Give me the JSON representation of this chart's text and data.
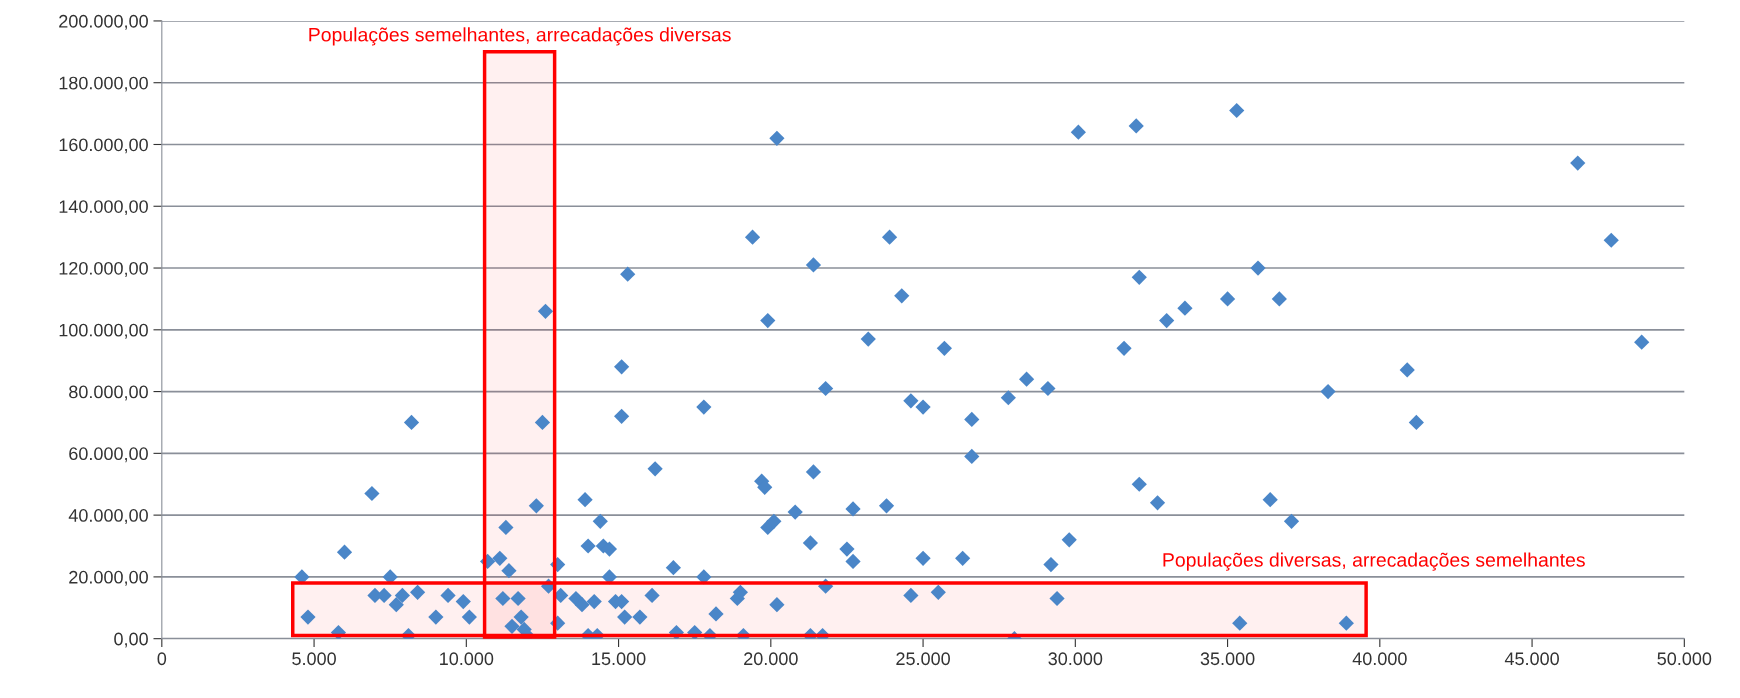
{
  "chart_data": {
    "type": "scatter",
    "marker": "diamond",
    "grid": "y",
    "color": "#4a86c8",
    "x": [
      4600,
      4800,
      5800,
      6000,
      6900,
      7000,
      7300,
      7500,
      7700,
      7900,
      8100,
      8200,
      8400,
      9000,
      9400,
      9900,
      10100,
      10700,
      11100,
      11200,
      11300,
      11400,
      11500,
      11700,
      11800,
      11900,
      12000,
      12300,
      12500,
      12600,
      12700,
      13000,
      13000,
      13100,
      13600,
      13800,
      13900,
      14000,
      14000,
      14200,
      14300,
      14400,
      14500,
      14700,
      14700,
      14900,
      15100,
      15100,
      15100,
      15200,
      15300,
      15700,
      16100,
      16200,
      16800,
      16900,
      17500,
      17800,
      17800,
      18000,
      18200,
      18900,
      19000,
      19100,
      19400,
      19700,
      19800,
      19900,
      19900,
      20100,
      20200,
      20200,
      20800,
      21300,
      21300,
      21400,
      21400,
      21800,
      21800,
      21700,
      22500,
      22700,
      22700,
      23200,
      23800,
      23900,
      24300,
      24600,
      24600,
      25000,
      25000,
      25500,
      25700,
      26300,
      26600,
      26600,
      27800,
      28000,
      28400,
      29100,
      29200,
      29400,
      29800,
      30100,
      31600,
      32000,
      32100,
      32100,
      32700,
      33000,
      33600,
      35000,
      35300,
      35400,
      36000,
      36400,
      36700,
      37100,
      38300,
      38900,
      40900,
      41200,
      46500,
      47600,
      48600
    ],
    "values": [
      20000,
      7000,
      2000,
      28000,
      47000,
      14000,
      14000,
      20000,
      11000,
      14000,
      1000,
      70000,
      15000,
      7000,
      14000,
      12000,
      7000,
      25000,
      26000,
      13000,
      36000,
      22000,
      4000,
      13000,
      7000,
      3000,
      1000,
      43000,
      70000,
      106000,
      17000,
      24000,
      5000,
      14000,
      13000,
      11000,
      45000,
      30000,
      1000,
      12000,
      1000,
      38000,
      30000,
      29000,
      20000,
      12000,
      72000,
      88000,
      12000,
      7000,
      118000,
      7000,
      14000,
      55000,
      23000,
      2000,
      2000,
      20000,
      75000,
      1000,
      8000,
      13000,
      15000,
      1000,
      130000,
      51000,
      49000,
      36000,
      103000,
      38000,
      162000,
      11000,
      41000,
      31000,
      1000,
      54000,
      121000,
      81000,
      17000,
      1000,
      29000,
      25000,
      42000,
      97000,
      43000,
      130000,
      111000,
      77000,
      14000,
      75000,
      26000,
      15000,
      94000,
      26000,
      71000,
      59000,
      78000,
      0,
      84000,
      81000,
      24000,
      13000,
      32000,
      164000,
      94000,
      166000,
      117000,
      50000,
      44000,
      103000,
      107000,
      110000,
      171000,
      5000,
      120000,
      45000,
      110000,
      38000,
      80000,
      5000,
      87000,
      70000,
      154000,
      129000,
      96000
    ],
    "xlim": [
      0,
      50000
    ],
    "xticks": [
      0,
      {
        "value": 5000,
        "label": "5.000"
      },
      {
        "value": 10000,
        "label": "10.000"
      },
      {
        "value": 15000,
        "label": "15.000"
      },
      {
        "value": 20000,
        "label": "20.000"
      },
      {
        "value": 25000,
        "label": "25.000"
      },
      {
        "value": 30000,
        "label": "30.000"
      },
      {
        "value": 35000,
        "label": "35.000"
      },
      {
        "value": 40000,
        "label": "40.000"
      },
      {
        "value": 45000,
        "label": "45.000"
      },
      {
        "value": 50000,
        "label": "50.000"
      }
    ],
    "ylim": [
      0,
      200000
    ],
    "yticks": [
      {
        "value": 0,
        "label": "0,00"
      },
      {
        "value": 20000,
        "label": "20.000,00"
      },
      {
        "value": 40000,
        "label": "40.000,00"
      },
      {
        "value": 60000,
        "label": "60.000,00"
      },
      {
        "value": 80000,
        "label": "80.000,00"
      },
      {
        "value": 100000,
        "label": "100.000,00"
      },
      {
        "value": 120000,
        "label": "120.000,00"
      },
      {
        "value": 140000,
        "label": "140.000,00"
      },
      {
        "value": 160000,
        "label": "160.000,00"
      },
      {
        "value": 180000,
        "label": "180.000,00"
      },
      {
        "value": 200000,
        "label": "200.000,00"
      }
    ],
    "bands": [
      {
        "axis": "x",
        "from": 10600,
        "to": 12900,
        "label": "Populações semelhantes, arrecadações diversas",
        "color": "#ff0000"
      },
      {
        "axis": "y",
        "from": 1000,
        "to": 18000,
        "label": "Populações diversas, arrecadações semelhantes",
        "color": "#ff0000"
      }
    ]
  }
}
